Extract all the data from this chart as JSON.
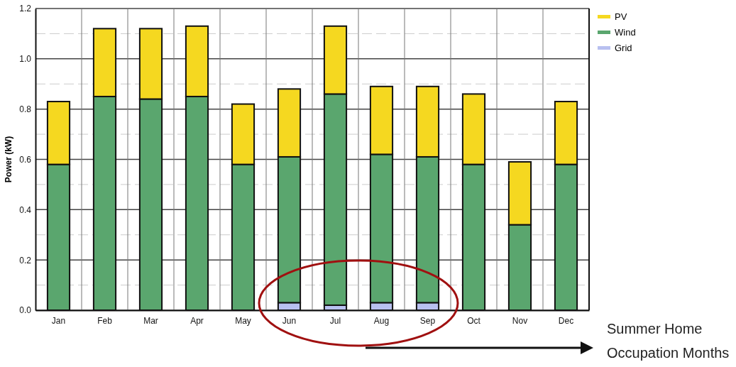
{
  "chart_data": {
    "type": "bar",
    "stacked": true,
    "ylabel": "Power (kW)",
    "categories": [
      "Jan",
      "Feb",
      "Mar",
      "Apr",
      "May",
      "Jun",
      "Jul",
      "Aug",
      "Sep",
      "Oct",
      "Nov",
      "Dec"
    ],
    "series": [
      {
        "name": "Grid",
        "color": "#b8c0f0",
        "values": [
          0,
          0,
          0,
          0,
          0,
          0.03,
          0.02,
          0.03,
          0.03,
          0,
          0,
          0
        ]
      },
      {
        "name": "Wind",
        "color": "#5aa66e",
        "values": [
          0.58,
          0.85,
          0.84,
          0.85,
          0.58,
          0.58,
          0.84,
          0.59,
          0.58,
          0.58,
          0.34,
          0.58
        ]
      },
      {
        "name": "PV",
        "color": "#f5d820",
        "values": [
          0.25,
          0.27,
          0.28,
          0.28,
          0.24,
          0.27,
          0.27,
          0.27,
          0.28,
          0.28,
          0.25,
          0.25
        ]
      }
    ],
    "ylim": [
      0,
      1.2
    ],
    "yticks": [
      {
        "value": 0,
        "label": "0.0"
      },
      {
        "value": 0.1,
        "label": null
      },
      {
        "value": 0.2,
        "label": "0.2"
      },
      {
        "value": 0.3,
        "label": null
      },
      {
        "value": 0.4,
        "label": "0.4"
      },
      {
        "value": 0.5,
        "label": null
      },
      {
        "value": 0.6,
        "label": "0.6"
      },
      {
        "value": 0.7,
        "label": null
      },
      {
        "value": 0.8,
        "label": "0.8"
      },
      {
        "value": 0.9,
        "label": null
      },
      {
        "value": 1,
        "label": "1.0"
      },
      {
        "value": 1.1,
        "label": null
      },
      {
        "value": 1.2,
        "label": "1.2"
      }
    ],
    "grid": true,
    "legend": "top right",
    "annotations": [
      "Summer Home Occupation Months"
    ]
  }
}
